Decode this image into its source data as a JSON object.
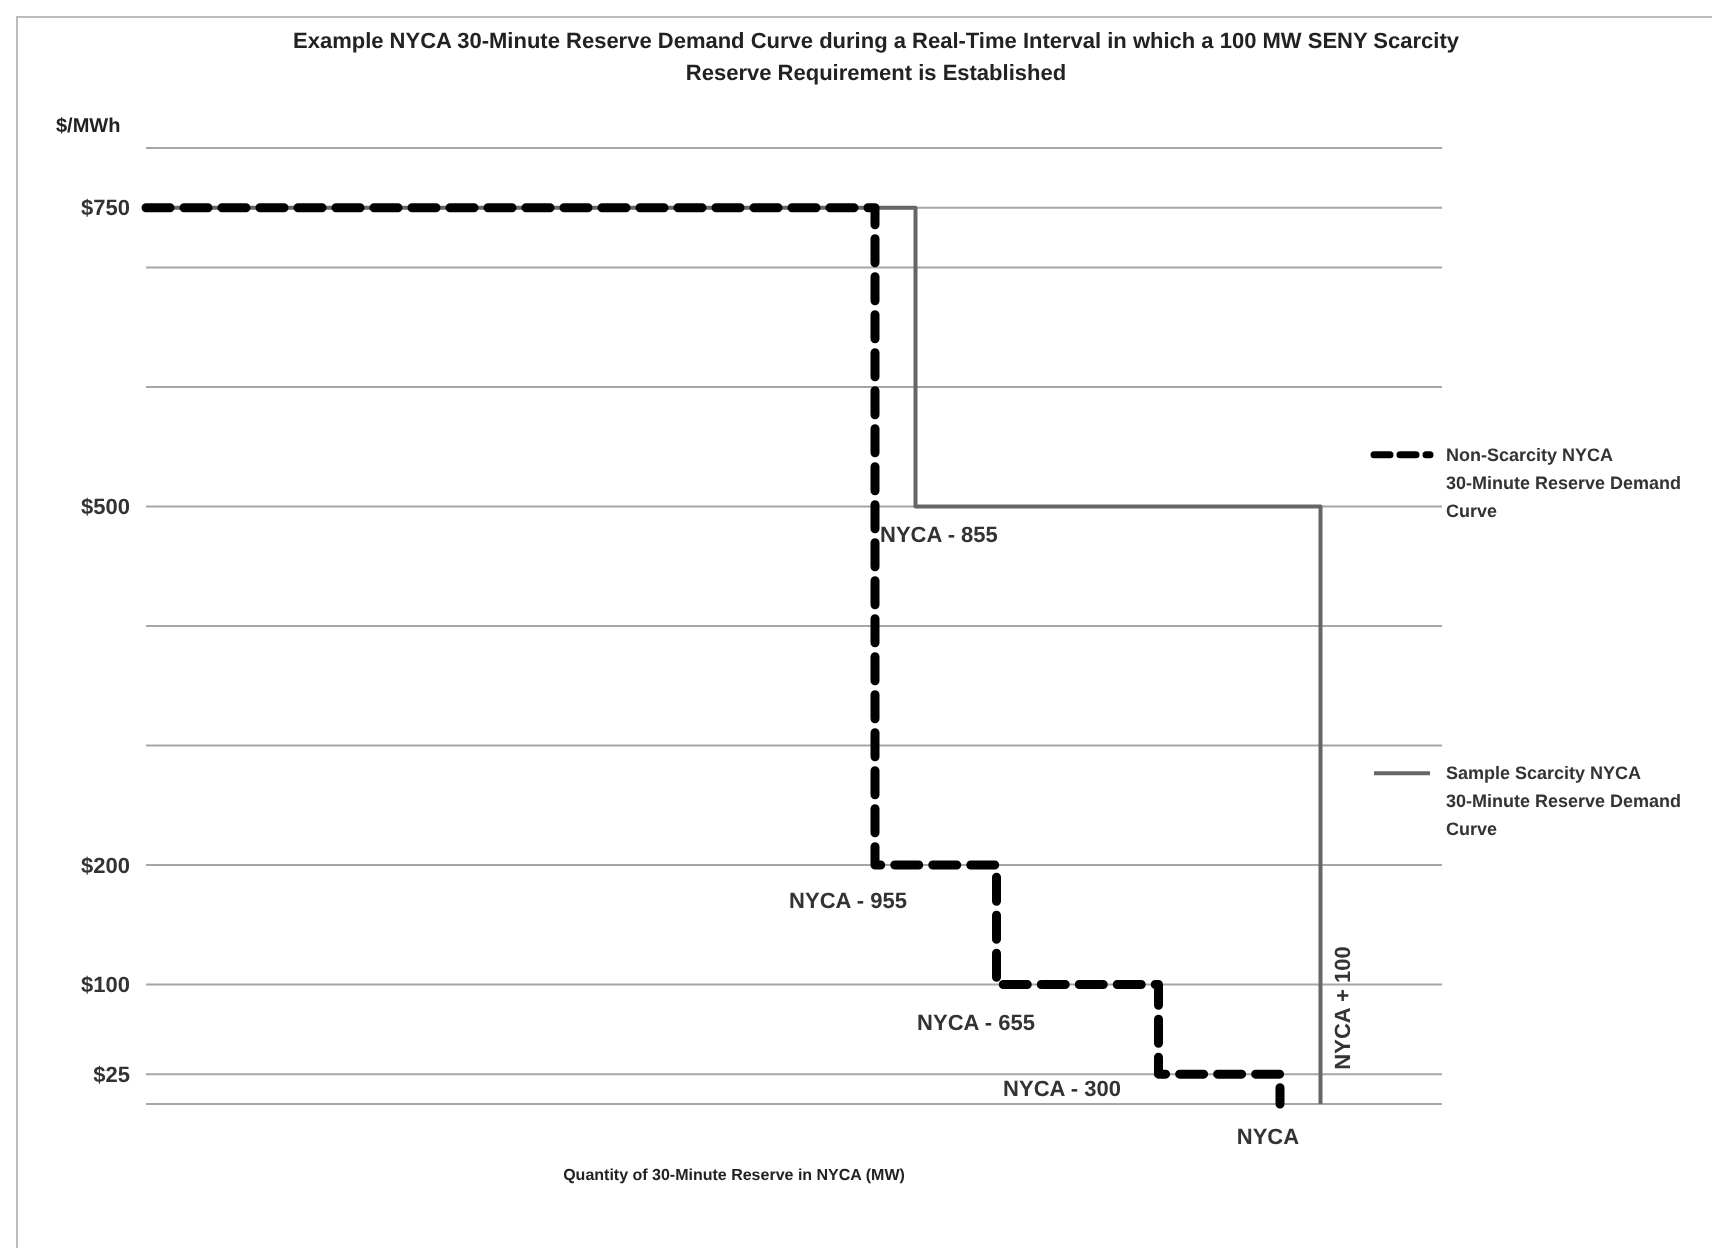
{
  "chart_data": {
    "type": "step",
    "title": "Example NYCA 30-Minute Reserve Demand Curve during a Real-Time Interval in which a 100 MW SENY Scarcity Reserve Requirement is Established",
    "xlabel": "Quantity of 30-Minute Reserve in NYCA (MW)",
    "ylabel": "$/MWh",
    "categories": [
      null,
      null,
      null,
      null,
      null,
      null,
      null,
      null,
      null,
      null,
      null,
      null,
      null,
      null,
      null,
      null,
      null,
      null,
      null,
      null,
      null,
      null,
      null,
      null,
      null,
      null,
      null,
      null,
      null,
      null,
      null,
      null,
      null
    ],
    "ylim": [
      0,
      800
    ],
    "yticks": [
      {
        "value": 800,
        "label": null
      },
      {
        "value": 750,
        "label": "$750"
      },
      {
        "value": 700,
        "label": null
      },
      {
        "value": 600,
        "label": null
      },
      {
        "value": 500,
        "label": "$500"
      },
      {
        "value": 400,
        "label": null
      },
      {
        "value": 300,
        "label": null
      },
      {
        "value": 200,
        "label": "$200"
      },
      {
        "value": 100,
        "label": "$100"
      },
      {
        "value": 25,
        "label": "$25"
      },
      {
        "value": 0,
        "label": null
      }
    ],
    "tick_labels": "y",
    "grid": "y",
    "legend": "right",
    "series": [
      {
        "name": "Non-Scarcity NYCA 30-Minute Reserve Demand Curve",
        "color": "#000000",
        "line_style": "dashed",
        "values": [
          750,
          750,
          750,
          750,
          750,
          750,
          750,
          750,
          750,
          750,
          750,
          750,
          750,
          750,
          750,
          750,
          750,
          750,
          200,
          200,
          200,
          100,
          100,
          100,
          100,
          25,
          25,
          25,
          0,
          null,
          null,
          null,
          null
        ]
      },
      {
        "name": "Sample Scarcity NYCA 30-Minute Reserve Demand Curve",
        "color": "#666666",
        "line_style": "solid",
        "values": [
          750,
          750,
          750,
          750,
          750,
          750,
          750,
          750,
          750,
          750,
          750,
          750,
          750,
          750,
          750,
          750,
          750,
          750,
          750,
          500,
          500,
          500,
          500,
          500,
          500,
          500,
          500,
          500,
          500,
          0,
          null,
          null,
          null
        ]
      }
    ],
    "annotations": [
      "NYCA - 855",
      "NYCA - 955",
      "NYCA - 655",
      "NYCA - 300",
      "NYCA",
      "NYCA + 100"
    ]
  }
}
